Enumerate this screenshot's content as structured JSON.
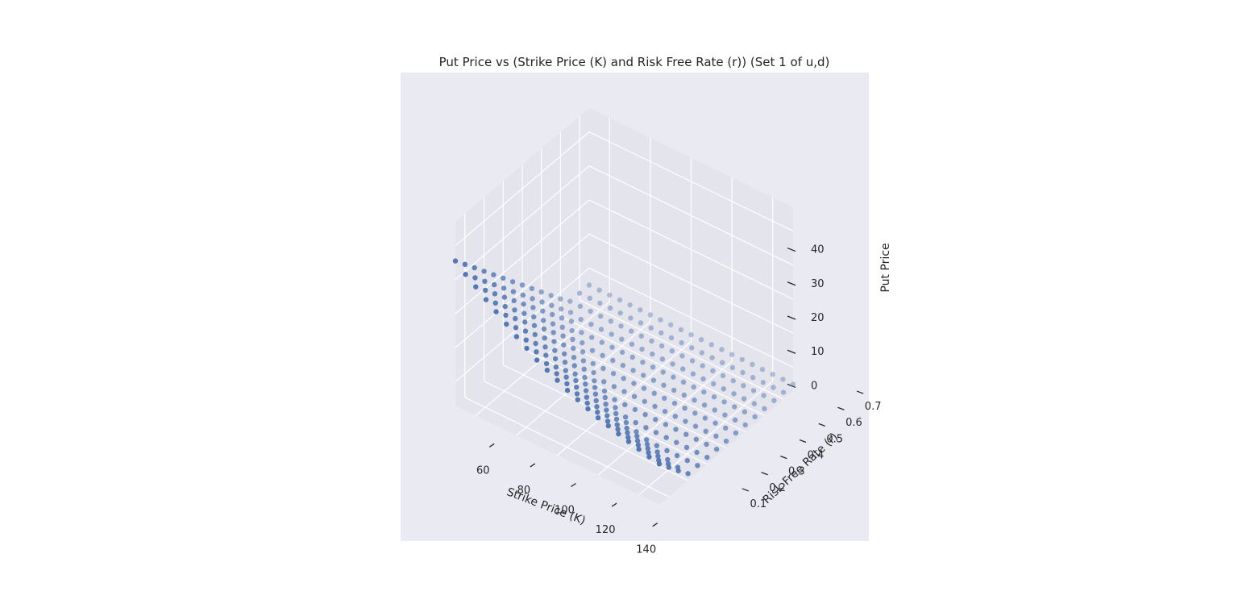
{
  "chart_data": {
    "type": "scatter",
    "projection": "3d",
    "title": "Put Price vs (Strike Price (K) and Risk Free Rate (r)) (Set 1 of u,d)",
    "xlabel": "Strike Price (K)",
    "ylabel": "Risk Free Rate (r)",
    "zlabel": "Put Price",
    "x_ticks": [
      60,
      80,
      100,
      120,
      140
    ],
    "y_ticks": [
      0.1,
      0.2,
      0.3,
      0.4,
      0.5,
      0.6,
      0.7
    ],
    "z_ticks": [
      0,
      10,
      20,
      30,
      40
    ],
    "x_tick_labels": [
      "60",
      "80",
      "100",
      "120",
      "140"
    ],
    "y_tick_labels": [
      "0.1",
      "0.2",
      "0.3",
      "0.4",
      "0.5",
      "0.6",
      "0.7"
    ],
    "z_tick_labels": [
      "0",
      "10",
      "20",
      "30",
      "40"
    ],
    "xlim": [
      50,
      150
    ],
    "ylim": [
      0.05,
      0.75
    ],
    "zlim": [
      -7,
      47
    ],
    "grid": true,
    "style": "seaborn-darkgrid",
    "marker_color": "#4c72b0",
    "strike_values": [
      50,
      55,
      60,
      65,
      70,
      75,
      80,
      85,
      90,
      95,
      100,
      105,
      110,
      115,
      120,
      125,
      130,
      135,
      140,
      145,
      150
    ],
    "rate_values": [
      0.05,
      0.1,
      0.15,
      0.2,
      0.25,
      0.3,
      0.35,
      0.4,
      0.45,
      0.5,
      0.55,
      0.6,
      0.65,
      0.7,
      0.75
    ],
    "put_price_at_min_rate": [
      35.5,
      33.0,
      30.8,
      28.5,
      26.4,
      24.2,
      22.0,
      20.0,
      18.0,
      16.5,
      15.0,
      13.5,
      12.2,
      11.0,
      9.8,
      8.9,
      8.0,
      7.2,
      6.4,
      5.6,
      5.0
    ]
  }
}
